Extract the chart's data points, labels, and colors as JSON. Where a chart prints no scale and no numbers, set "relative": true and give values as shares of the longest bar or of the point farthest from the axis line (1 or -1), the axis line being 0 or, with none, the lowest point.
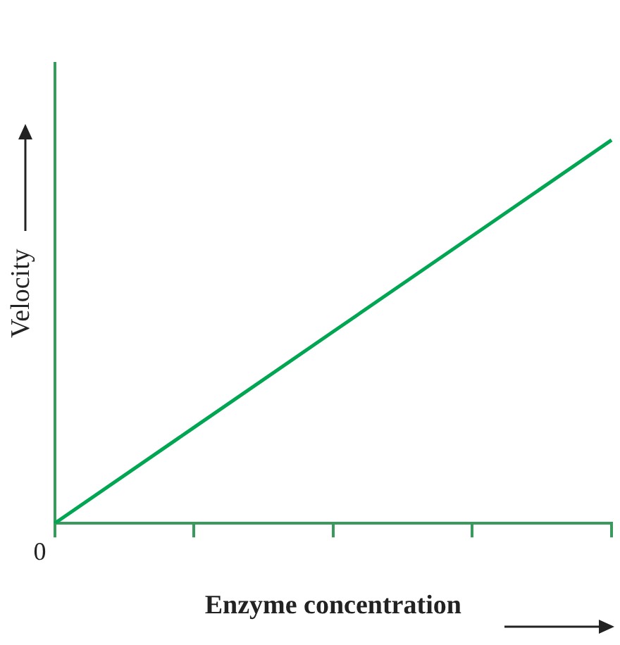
{
  "chart_data": {
    "type": "line",
    "xlabel": "Enzyme concentration",
    "ylabel": "Velocity",
    "categories": [
      null,
      null,
      null,
      null,
      null
    ],
    "annotations": [
      "0"
    ],
    "values": [
      0,
      0.25,
      0.5,
      0.75,
      1
    ],
    "color": "#00a651",
    "relative": true,
    "marker": "none",
    "grid": false
  }
}
